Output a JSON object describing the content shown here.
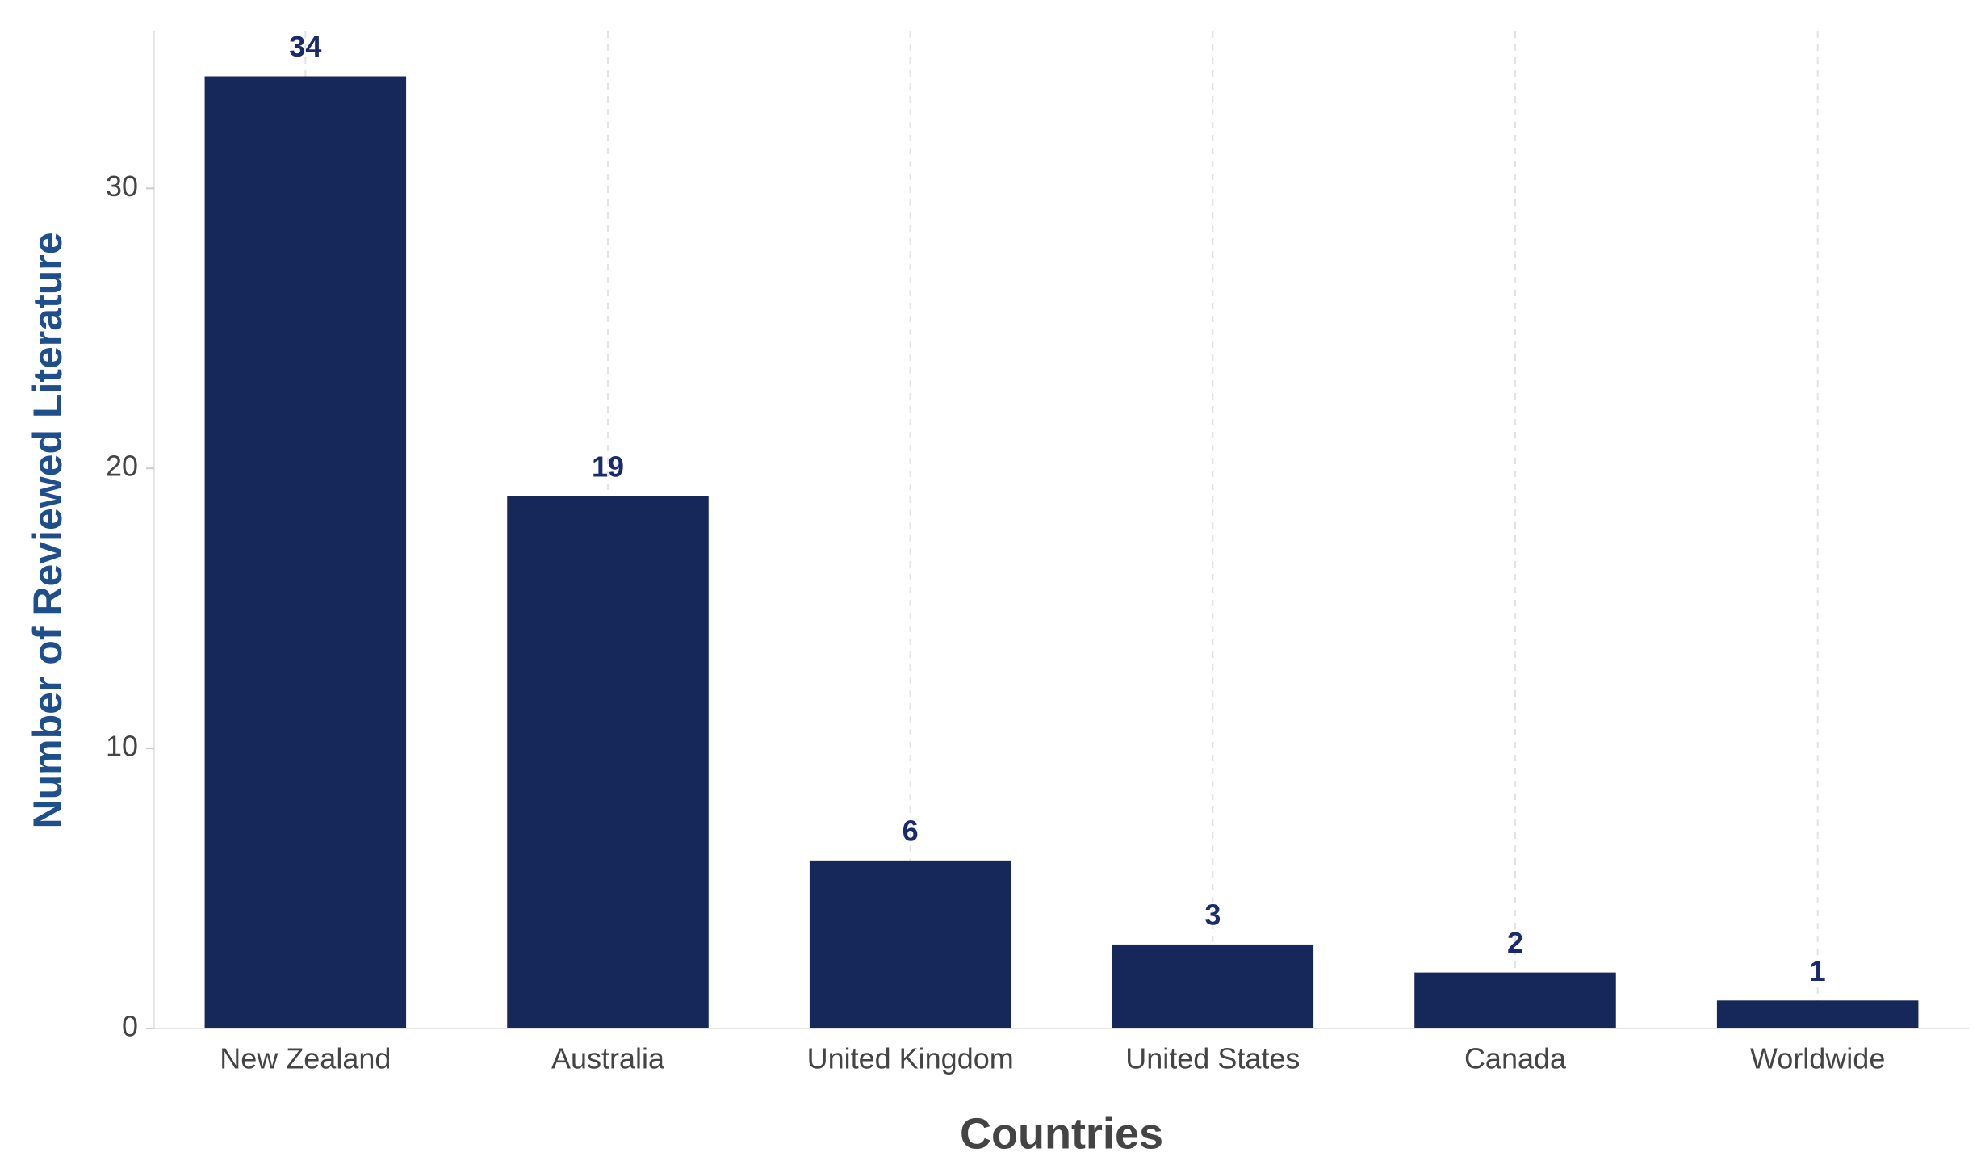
{
  "chart_data": {
    "type": "bar",
    "x_label": "Countries",
    "y_label": "Number of Reviewed Literature",
    "categories": [
      "New Zealand",
      "Australia",
      "United Kingdom",
      "United States",
      "Canada",
      "Worldwide"
    ],
    "values": [
      34,
      19,
      6,
      3,
      2,
      1
    ],
    "color": "#16275a",
    "label_color": "#1a2b6d",
    "ylim": [
      0,
      35.6
    ],
    "yticks": [
      0,
      10,
      20,
      30
    ],
    "grid": true
  }
}
